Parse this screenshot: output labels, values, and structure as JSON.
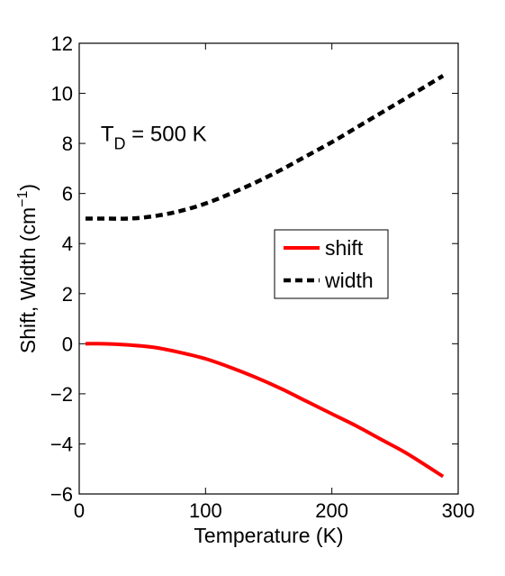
{
  "chart_data": {
    "type": "line",
    "xlabel": "Temperature (K)",
    "ylabel": {
      "prefix": "Shift,    Width  (cm",
      "superscript": "−1",
      "suffix": ")"
    },
    "xlim": [
      0,
      300
    ],
    "ylim": [
      -6,
      12
    ],
    "xticks": [
      0,
      100,
      200,
      300
    ],
    "yticks": [
      -6,
      -4,
      -2,
      0,
      2,
      4,
      6,
      8,
      10,
      12
    ],
    "grid": false,
    "legend_position": "right",
    "annotation": {
      "main": "T",
      "subscript": "D",
      "rest": " = 500 K",
      "x": 17,
      "y": 8.1
    },
    "series": [
      {
        "name": "shift",
        "color": "#ff0000",
        "style": "solid",
        "x": [
          5,
          20,
          40,
          60,
          80,
          100,
          120,
          140,
          160,
          180,
          200,
          220,
          240,
          260,
          288
        ],
        "y": [
          0,
          0,
          -0.05,
          -0.15,
          -0.35,
          -0.6,
          -0.95,
          -1.35,
          -1.8,
          -2.3,
          -2.8,
          -3.3,
          -3.85,
          -4.4,
          -5.3
        ]
      },
      {
        "name": "width",
        "color": "#000000",
        "style": "dashed",
        "x": [
          5,
          20,
          40,
          60,
          80,
          100,
          120,
          140,
          160,
          180,
          200,
          220,
          240,
          260,
          288
        ],
        "y": [
          5,
          5,
          5,
          5.1,
          5.3,
          5.6,
          6.0,
          6.45,
          6.95,
          7.5,
          8.05,
          8.65,
          9.25,
          9.85,
          10.7
        ]
      }
    ]
  }
}
